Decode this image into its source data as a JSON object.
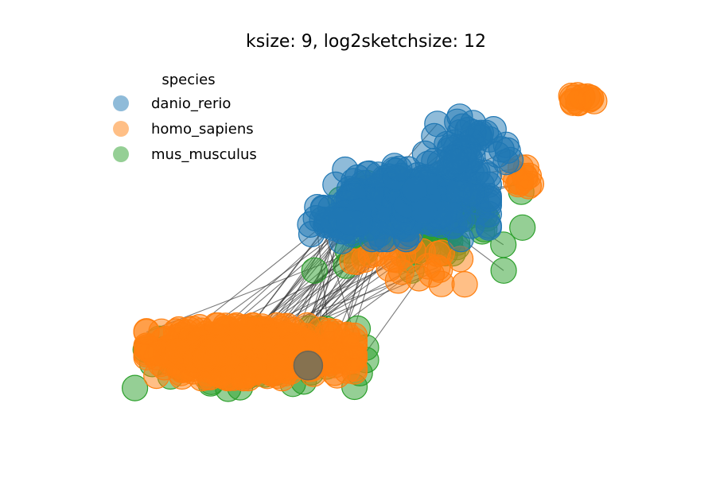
{
  "chart_data": {
    "type": "scatter",
    "title": "ksize: 9, log2sketchsize: 12",
    "xlabel": "",
    "ylabel": "",
    "axes_visible": false,
    "grid": false,
    "xlim": [
      0,
      100
    ],
    "ylim": [
      0,
      100
    ],
    "legend": {
      "title": "species",
      "position": "top-left"
    },
    "series": [
      {
        "name": "danio_rerio",
        "color": "#1f77b4",
        "clusters": [
          {
            "x": 58,
            "y": 62,
            "sx": 7,
            "sy": 5,
            "n": 260
          },
          {
            "x": 70,
            "y": 78,
            "sx": 4,
            "sy": 4,
            "n": 50
          },
          {
            "x": 46,
            "y": 57,
            "sx": 3,
            "sy": 3,
            "n": 40
          }
        ]
      },
      {
        "name": "homo_sapiens",
        "color": "#ff7f0e",
        "clusters": [
          {
            "x": 28,
            "y": 18,
            "sx": 9,
            "sy": 3.5,
            "n": 700
          },
          {
            "x": 90,
            "y": 92,
            "sx": 1.6,
            "sy": 1.6,
            "n": 14
          },
          {
            "x": 80,
            "y": 69,
            "sx": 2.5,
            "sy": 2,
            "n": 12
          },
          {
            "x": 58,
            "y": 44,
            "sx": 6,
            "sy": 3,
            "n": 25
          }
        ]
      },
      {
        "name": "mus_musculus",
        "color": "#2ca02c",
        "clusters": [
          {
            "x": 60,
            "y": 55,
            "sx": 9,
            "sy": 6,
            "n": 110
          },
          {
            "x": 28,
            "y": 16,
            "sx": 10,
            "sy": 4,
            "n": 90
          }
        ]
      }
    ],
    "outlier": {
      "x": 39,
      "y": 14,
      "color": "#867250"
    },
    "edges": {
      "color": "#333333"
    }
  }
}
